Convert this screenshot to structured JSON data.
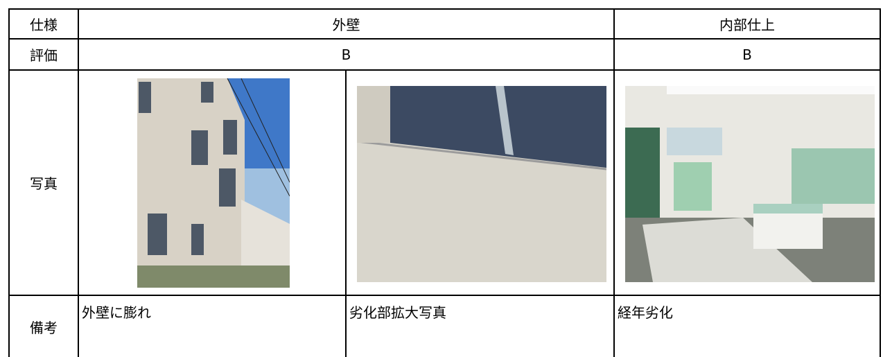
{
  "table": {
    "rows": [
      [
        "仕様",
        "外壁",
        "内部仕上"
      ],
      [
        "評価",
        "B",
        "B"
      ],
      [
        "写真"
      ],
      [
        "備考",
        "外壁に膨れ",
        "劣化部拡大写真",
        "経年劣化"
      ]
    ]
  }
}
